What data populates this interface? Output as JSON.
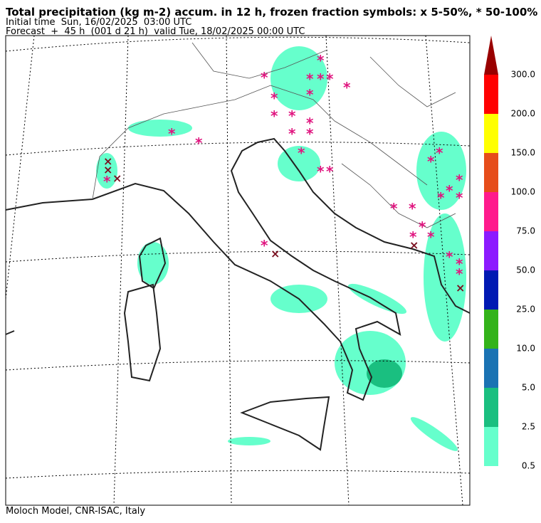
{
  "header": {
    "title": "Total precipitation (kg m-2) accum. in 12 h, frozen fraction symbols: x 5-50%, * 50-100%",
    "initial_time": "Initial time  Sun, 16/02/2025  03:00 UTC",
    "forecast": "Forecast  +  45 h  (001 d 21 h)  valid Tue, 18/02/2025 00:00 UTC"
  },
  "colorbar": {
    "labels": [
      "0.5",
      "2.5",
      "5.0",
      "10.0",
      "25.0",
      "50.0",
      "75.0",
      "100.0",
      "150.0",
      "200.0",
      "300.0"
    ],
    "colors": [
      "#66ffcc",
      "#1abf80",
      "#1a73b3",
      "#33b31a",
      "#0019b3",
      "#8c1aff",
      "#ff1a8c",
      "#e64d1a",
      "#ffff00",
      "#ff0000",
      "#990000"
    ]
  },
  "footer": "Moloch Model, CNR-ISAC, Italy"
}
